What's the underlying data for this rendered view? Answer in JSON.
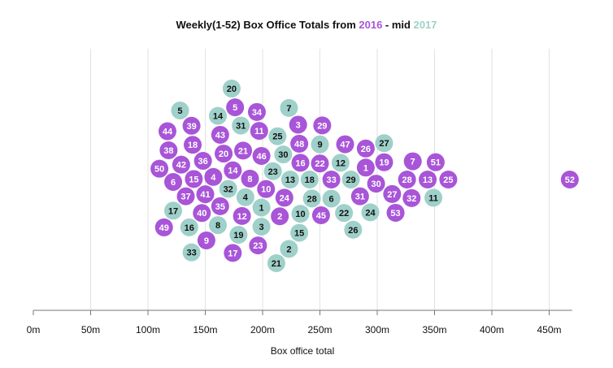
{
  "chart_data": {
    "type": "scatter",
    "title": {
      "prefix": "Weekly(1-52) Box Office Totals from ",
      "year_a": "2016",
      "middle": " - mid ",
      "year_b": "2017"
    },
    "xlabel": "Box office total",
    "xlim": [
      0,
      470
    ],
    "x_tick_values": [
      0,
      50,
      100,
      150,
      200,
      250,
      300,
      350,
      400,
      450
    ],
    "x_tick_labels": [
      "0m",
      "50m",
      "100m",
      "150m",
      "200m",
      "250m",
      "300m",
      "350m",
      "400m",
      "450m"
    ],
    "grid": true,
    "colors": {
      "2016": "#a855d8",
      "2017": "#9fd0ca"
    },
    "label_colors": {
      "2016": "#ffffff",
      "2017": "#111111"
    },
    "series": [
      {
        "name": "2016",
        "points": [
          {
            "week": "1",
            "x": 290
          },
          {
            "week": "2",
            "x": 215
          },
          {
            "week": "3",
            "x": 231
          },
          {
            "week": "4",
            "x": 157
          },
          {
            "week": "5",
            "x": 176
          },
          {
            "week": "6",
            "x": 122
          },
          {
            "week": "7",
            "x": 331
          },
          {
            "week": "8",
            "x": 189
          },
          {
            "week": "9",
            "x": 151
          },
          {
            "week": "10",
            "x": 203
          },
          {
            "week": "11",
            "x": 197
          },
          {
            "week": "12",
            "x": 182
          },
          {
            "week": "13",
            "x": 344
          },
          {
            "week": "14",
            "x": 174
          },
          {
            "week": "15",
            "x": 140
          },
          {
            "week": "16",
            "x": 233
          },
          {
            "week": "17",
            "x": 174
          },
          {
            "week": "18",
            "x": 139
          },
          {
            "week": "19",
            "x": 306
          },
          {
            "week": "20",
            "x": 166
          },
          {
            "week": "21",
            "x": 183
          },
          {
            "week": "22",
            "x": 250
          },
          {
            "week": "23",
            "x": 196
          },
          {
            "week": "24",
            "x": 219
          },
          {
            "week": "25",
            "x": 362
          },
          {
            "week": "26",
            "x": 290
          },
          {
            "week": "27",
            "x": 313
          },
          {
            "week": "28",
            "x": 326
          },
          {
            "week": "29",
            "x": 252
          },
          {
            "week": "30",
            "x": 299
          },
          {
            "week": "31",
            "x": 285
          },
          {
            "week": "32",
            "x": 330
          },
          {
            "week": "33",
            "x": 260
          },
          {
            "week": "34",
            "x": 195
          },
          {
            "week": "35",
            "x": 163
          },
          {
            "week": "36",
            "x": 148
          },
          {
            "week": "37",
            "x": 133
          },
          {
            "week": "38",
            "x": 118
          },
          {
            "week": "39",
            "x": 138
          },
          {
            "week": "40",
            "x": 147
          },
          {
            "week": "41",
            "x": 150
          },
          {
            "week": "42",
            "x": 129
          },
          {
            "week": "43",
            "x": 163
          },
          {
            "week": "44",
            "x": 117
          },
          {
            "week": "45",
            "x": 251
          },
          {
            "week": "46",
            "x": 199
          },
          {
            "week": "47",
            "x": 272
          },
          {
            "week": "48",
            "x": 232
          },
          {
            "week": "49",
            "x": 114
          },
          {
            "week": "50",
            "x": 110
          },
          {
            "week": "51",
            "x": 351
          },
          {
            "week": "52",
            "x": 468
          },
          {
            "week": "53",
            "x": 316
          }
        ]
      },
      {
        "name": "2017",
        "points": [
          {
            "week": "1",
            "x": 199
          },
          {
            "week": "2",
            "x": 223
          },
          {
            "week": "3",
            "x": 199
          },
          {
            "week": "4",
            "x": 185
          },
          {
            "week": "5",
            "x": 128
          },
          {
            "week": "6",
            "x": 260
          },
          {
            "week": "7",
            "x": 223
          },
          {
            "week": "8",
            "x": 161
          },
          {
            "week": "9",
            "x": 250
          },
          {
            "week": "10",
            "x": 233
          },
          {
            "week": "11",
            "x": 349
          },
          {
            "week": "12",
            "x": 268
          },
          {
            "week": "13",
            "x": 224
          },
          {
            "week": "14",
            "x": 161
          },
          {
            "week": "15",
            "x": 232
          },
          {
            "week": "16",
            "x": 136
          },
          {
            "week": "17",
            "x": 122
          },
          {
            "week": "18",
            "x": 241
          },
          {
            "week": "19",
            "x": 179
          },
          {
            "week": "20",
            "x": 173
          },
          {
            "week": "21",
            "x": 212
          },
          {
            "week": "22",
            "x": 271
          },
          {
            "week": "23",
            "x": 209
          },
          {
            "week": "24",
            "x": 294
          },
          {
            "week": "25",
            "x": 213
          },
          {
            "week": "26",
            "x": 279
          },
          {
            "week": "27",
            "x": 306
          },
          {
            "week": "28",
            "x": 243
          },
          {
            "week": "29",
            "x": 277
          },
          {
            "week": "30",
            "x": 218
          },
          {
            "week": "31",
            "x": 181
          },
          {
            "week": "32",
            "x": 170
          },
          {
            "week": "33",
            "x": 138
          }
        ]
      }
    ]
  }
}
